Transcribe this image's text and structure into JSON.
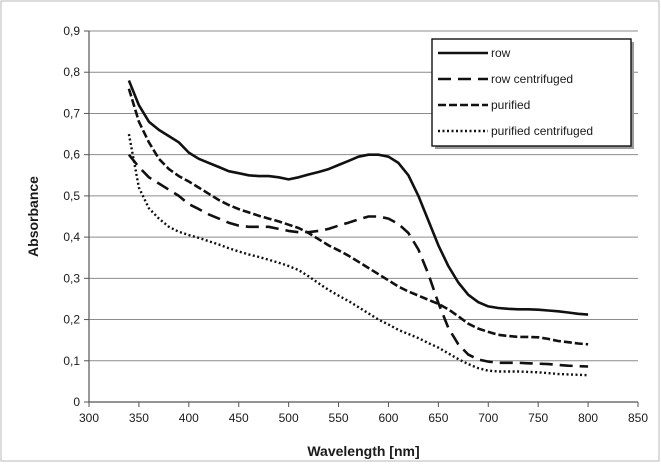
{
  "chart_data": {
    "type": "line",
    "xlabel": "Wavelength [nm]",
    "ylabel": "Absorbance",
    "xlim": [
      300,
      850
    ],
    "ylim": [
      0,
      0.9
    ],
    "xticks": [
      300,
      350,
      400,
      450,
      500,
      550,
      600,
      650,
      700,
      750,
      800,
      850
    ],
    "yticks": [
      0,
      0.1,
      0.2,
      0.3,
      0.4,
      0.5,
      0.6,
      0.7,
      0.8,
      0.9
    ],
    "xtick_labels": [
      "300",
      "350",
      "400",
      "450",
      "500",
      "550",
      "600",
      "650",
      "700",
      "750",
      "800",
      "850"
    ],
    "ytick_labels": [
      "0",
      "0,1",
      "0,2",
      "0,3",
      "0,4",
      "0,5",
      "0,6",
      "0,7",
      "0,8",
      "0,9"
    ],
    "grid": "horizontal",
    "legend_position": "top-right",
    "series": [
      {
        "name": "row",
        "style": "solid",
        "x": [
          340,
          350,
          360,
          370,
          380,
          390,
          400,
          410,
          420,
          430,
          440,
          450,
          460,
          470,
          480,
          490,
          500,
          510,
          520,
          530,
          540,
          550,
          560,
          570,
          580,
          590,
          600,
          610,
          620,
          630,
          640,
          650,
          660,
          670,
          680,
          690,
          700,
          710,
          720,
          730,
          740,
          750,
          760,
          770,
          780,
          790,
          800
        ],
        "y": [
          0.78,
          0.72,
          0.68,
          0.66,
          0.645,
          0.63,
          0.605,
          0.59,
          0.58,
          0.57,
          0.56,
          0.555,
          0.55,
          0.548,
          0.548,
          0.545,
          0.54,
          0.545,
          0.552,
          0.558,
          0.565,
          0.575,
          0.585,
          0.595,
          0.6,
          0.6,
          0.595,
          0.58,
          0.55,
          0.5,
          0.44,
          0.38,
          0.33,
          0.29,
          0.26,
          0.242,
          0.232,
          0.228,
          0.226,
          0.225,
          0.225,
          0.224,
          0.222,
          0.22,
          0.217,
          0.214,
          0.212
        ]
      },
      {
        "name": "row centrifuged",
        "style": "long-dash",
        "x": [
          340,
          350,
          360,
          370,
          380,
          390,
          400,
          410,
          420,
          430,
          440,
          450,
          460,
          470,
          480,
          490,
          500,
          510,
          520,
          530,
          540,
          550,
          560,
          570,
          580,
          590,
          600,
          610,
          620,
          630,
          640,
          650,
          660,
          670,
          680,
          690,
          700,
          710,
          720,
          730,
          740,
          750,
          760,
          770,
          780,
          790,
          800
        ],
        "y": [
          0.6,
          0.57,
          0.545,
          0.53,
          0.515,
          0.5,
          0.48,
          0.468,
          0.455,
          0.445,
          0.435,
          0.428,
          0.425,
          0.425,
          0.425,
          0.42,
          0.415,
          0.412,
          0.412,
          0.415,
          0.42,
          0.428,
          0.435,
          0.443,
          0.45,
          0.45,
          0.445,
          0.432,
          0.41,
          0.37,
          0.31,
          0.24,
          0.18,
          0.14,
          0.115,
          0.103,
          0.098,
          0.095,
          0.095,
          0.095,
          0.094,
          0.093,
          0.092,
          0.09,
          0.088,
          0.087,
          0.086
        ]
      },
      {
        "name": "purified",
        "style": "dash",
        "x": [
          340,
          350,
          360,
          370,
          380,
          390,
          400,
          410,
          420,
          430,
          440,
          450,
          460,
          470,
          480,
          490,
          500,
          510,
          520,
          530,
          540,
          550,
          560,
          570,
          580,
          590,
          600,
          610,
          620,
          630,
          640,
          650,
          660,
          670,
          680,
          690,
          700,
          710,
          720,
          730,
          740,
          750,
          760,
          770,
          780,
          790,
          800
        ],
        "y": [
          0.76,
          0.68,
          0.63,
          0.59,
          0.565,
          0.548,
          0.535,
          0.52,
          0.505,
          0.49,
          0.478,
          0.468,
          0.46,
          0.452,
          0.445,
          0.438,
          0.43,
          0.422,
          0.41,
          0.395,
          0.38,
          0.368,
          0.355,
          0.34,
          0.325,
          0.31,
          0.295,
          0.28,
          0.268,
          0.258,
          0.248,
          0.238,
          0.225,
          0.208,
          0.19,
          0.178,
          0.17,
          0.163,
          0.16,
          0.158,
          0.158,
          0.157,
          0.153,
          0.148,
          0.145,
          0.142,
          0.14
        ]
      },
      {
        "name": "purified centrifuged",
        "style": "dotted",
        "x": [
          340,
          350,
          360,
          370,
          380,
          390,
          400,
          410,
          420,
          430,
          440,
          450,
          460,
          470,
          480,
          490,
          500,
          510,
          520,
          530,
          540,
          550,
          560,
          570,
          580,
          590,
          600,
          610,
          620,
          630,
          640,
          650,
          660,
          670,
          680,
          690,
          700,
          710,
          720,
          730,
          740,
          750,
          760,
          770,
          780,
          790,
          800
        ],
        "y": [
          0.65,
          0.52,
          0.47,
          0.445,
          0.425,
          0.413,
          0.405,
          0.398,
          0.39,
          0.382,
          0.373,
          0.365,
          0.358,
          0.352,
          0.345,
          0.338,
          0.33,
          0.32,
          0.305,
          0.288,
          0.272,
          0.258,
          0.245,
          0.23,
          0.215,
          0.2,
          0.188,
          0.175,
          0.165,
          0.155,
          0.143,
          0.132,
          0.118,
          0.104,
          0.092,
          0.082,
          0.076,
          0.074,
          0.074,
          0.074,
          0.073,
          0.072,
          0.07,
          0.068,
          0.067,
          0.066,
          0.065
        ]
      }
    ]
  }
}
